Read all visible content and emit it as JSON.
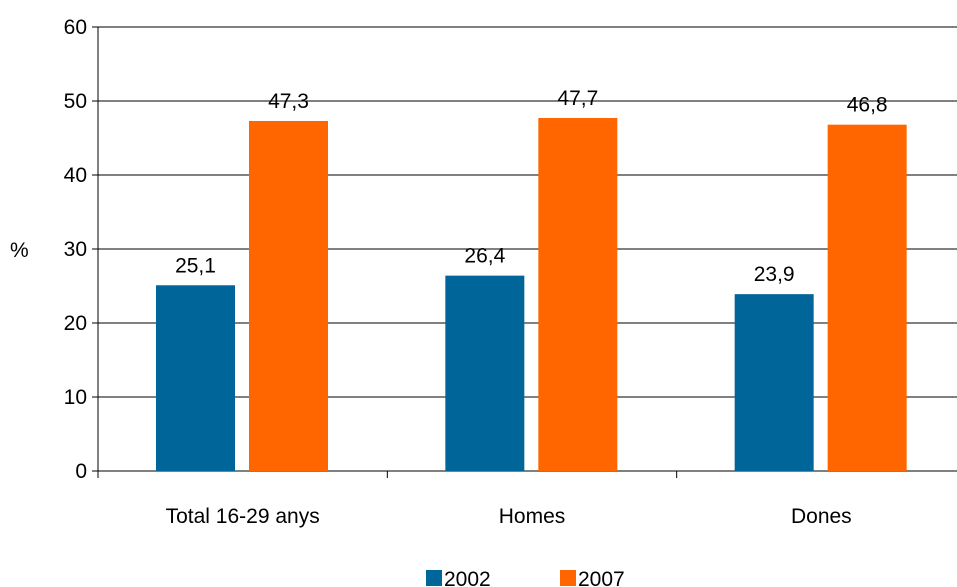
{
  "chart_data": {
    "type": "bar",
    "title": "",
    "xlabel": "",
    "ylabel": "%",
    "ylim": [
      0,
      60
    ],
    "yticks": [
      0,
      10,
      20,
      30,
      40,
      50,
      60
    ],
    "categories": [
      "Total 16-29 anys",
      "Homes",
      "Dones"
    ],
    "series": [
      {
        "name": "2002",
        "values": [
          25.1,
          26.4,
          23.9
        ],
        "labels": [
          "25,1",
          "26,4",
          "23,9"
        ],
        "color": "#006699"
      },
      {
        "name": "2007",
        "values": [
          47.3,
          47.7,
          46.8
        ],
        "labels": [
          "47,3",
          "47,7",
          "46,8"
        ],
        "color": "#FF6600"
      }
    ],
    "grid": true,
    "legend_position": "bottom"
  }
}
